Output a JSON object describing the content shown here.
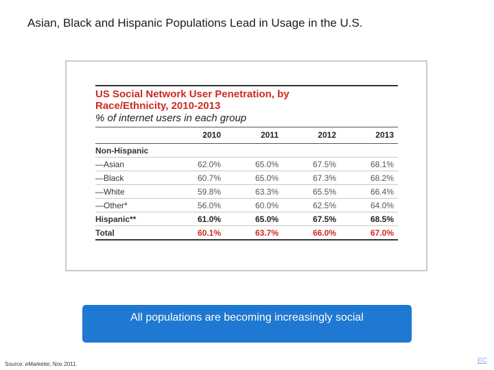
{
  "slide": {
    "title": "Asian, Black and Hispanic Populations Lead in Usage in the U.S.",
    "callout": "All populations are becoming increasingly social",
    "source": "Source: eMarketer, Nov 2011.",
    "page_badge": "EC"
  },
  "chart_data": {
    "type": "table",
    "title_line1": "US Social Network User Penetration, by",
    "title_line2": "Race/Ethnicity, 2010-2013",
    "subtitle": "% of internet users in each group",
    "columns": [
      "",
      "2010",
      "2011",
      "2012",
      "2013"
    ],
    "section_label": "Non-Hispanic",
    "rows": [
      {
        "label": "—Asian",
        "values": [
          "62.0%",
          "65.0%",
          "67.5%",
          "68.1%"
        ]
      },
      {
        "label": "—Black",
        "values": [
          "60.7%",
          "65.0%",
          "67.3%",
          "68.2%"
        ]
      },
      {
        "label": "—White",
        "values": [
          "59.8%",
          "63.3%",
          "65.5%",
          "66.4%"
        ]
      },
      {
        "label": "—Other*",
        "values": [
          "56.0%",
          "60.0%",
          "62.5%",
          "64.0%"
        ]
      },
      {
        "label": "Hispanic**",
        "values": [
          "61.0%",
          "65.0%",
          "67.5%",
          "68.5%"
        ]
      },
      {
        "label": "Total",
        "values": [
          "60.1%",
          "63.7%",
          "66.0%",
          "67.0%"
        ]
      }
    ],
    "colors": {
      "accent": "#cc2a1f",
      "callout": "#1f78d1"
    }
  }
}
